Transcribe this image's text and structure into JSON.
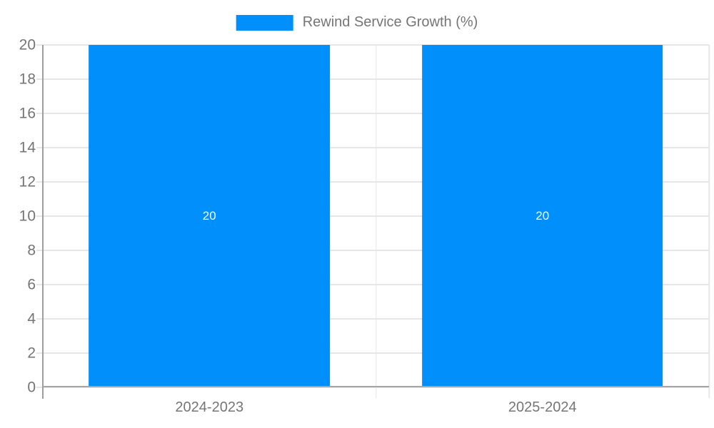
{
  "chart_data": {
    "type": "bar",
    "title": "Rewind Service Growth (%)",
    "categories": [
      "2024-2023",
      "2025-2024"
    ],
    "series": [
      {
        "name": "Rewind Service Growth (%)",
        "values": [
          20,
          20
        ]
      }
    ],
    "bar_labels": [
      "20",
      "20"
    ],
    "ylabel": "",
    "xlabel": "",
    "ylim": [
      0,
      20
    ],
    "ytick_step": 2,
    "yticks": [
      0,
      2,
      4,
      6,
      8,
      10,
      12,
      14,
      16,
      18,
      20
    ],
    "grid": true,
    "legend_position": "top",
    "colors": {
      "bar": "#008FFB",
      "grid": "#e6e6e6",
      "axis": "#9e9e9e",
      "text": "#757575",
      "bar_label": "#ffffff",
      "background": "#ffffff"
    }
  },
  "legend": {
    "label": "Rewind Service Growth (%)"
  }
}
